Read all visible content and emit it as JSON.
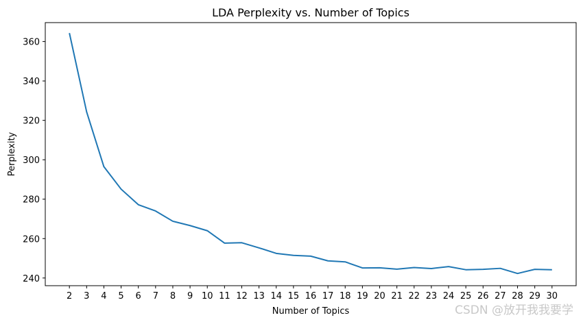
{
  "chart_data": {
    "type": "line",
    "title": "LDA Perplexity vs. Number of Topics",
    "xlabel": "Number of Topics",
    "ylabel": "Perplexity",
    "x": [
      2,
      3,
      4,
      5,
      6,
      7,
      8,
      9,
      10,
      11,
      12,
      13,
      14,
      15,
      16,
      17,
      18,
      19,
      20,
      21,
      22,
      23,
      24,
      25,
      26,
      27,
      28,
      29,
      30
    ],
    "y": [
      364.3,
      324.3,
      296.5,
      285.1,
      277.2,
      274.0,
      268.8,
      266.6,
      264.0,
      257.7,
      257.9,
      255.3,
      252.5,
      251.5,
      251.1,
      248.7,
      248.2,
      245.1,
      245.2,
      244.5,
      245.3,
      244.8,
      245.8,
      244.2,
      244.4,
      244.9,
      242.3,
      244.4,
      244.2
    ],
    "xlim": [
      0.6,
      31.4
    ],
    "ylim": [
      236.1,
      369.6
    ],
    "xticks": [
      2,
      3,
      4,
      5,
      6,
      7,
      8,
      9,
      10,
      11,
      12,
      13,
      14,
      15,
      16,
      17,
      18,
      19,
      20,
      21,
      22,
      23,
      24,
      25,
      26,
      27,
      28,
      29,
      30
    ],
    "yticks": [
      240,
      260,
      280,
      300,
      320,
      340,
      360
    ],
    "grid": false,
    "line_color": "#1f77b4"
  },
  "watermark": "CSDN @放开我我要学"
}
